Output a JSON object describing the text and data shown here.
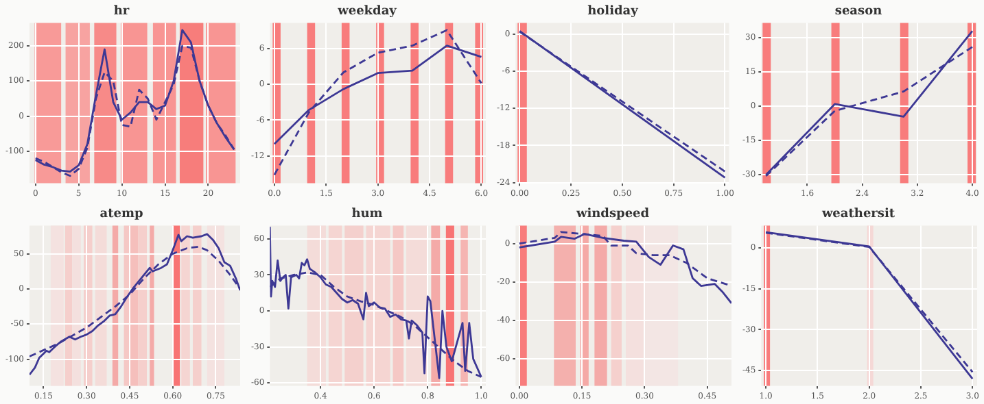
{
  "chart_data": [
    {
      "type": "line",
      "title": "hr",
      "xlim": [
        -0.7,
        23.7
      ],
      "xticks": [
        0,
        5,
        10,
        15,
        20
      ],
      "ylim": [
        -191,
        265
      ],
      "yticks": [
        -100,
        0,
        100,
        200
      ],
      "grid": true,
      "bands": [
        {
          "axis": "x",
          "from": -0.1,
          "to": 2.97,
          "color": "#f89a98"
        },
        {
          "axis": "x",
          "from": 3.48,
          "to": 6.29,
          "color": "#f7a3a1"
        },
        {
          "axis": "x",
          "from": 6.8,
          "to": 9.36,
          "color": "#f78a88"
        },
        {
          "axis": "x",
          "from": 9.87,
          "to": 12.94,
          "color": "#f89593"
        },
        {
          "axis": "x",
          "from": 13.6,
          "to": 16.27,
          "color": "#f89593"
        },
        {
          "axis": "x",
          "from": 16.7,
          "to": 19.44,
          "color": "#f77d7b"
        },
        {
          "axis": "x",
          "from": 19.74,
          "to": 23.17,
          "color": "#f89593"
        }
      ],
      "series": [
        {
          "color": "#3d3894",
          "line_style": "solid",
          "x": [
            0,
            1,
            2,
            3,
            4,
            5,
            6,
            7,
            8,
            9,
            10,
            11,
            12,
            13,
            14,
            15,
            16,
            17,
            18,
            19,
            20,
            21,
            22,
            23
          ],
          "values": [
            -125,
            -138,
            -145,
            -155,
            -158,
            -140,
            -80,
            60,
            190,
            40,
            -10,
            10,
            40,
            40,
            20,
            30,
            100,
            245,
            210,
            100,
            30,
            -20,
            -60,
            -95
          ]
        },
        {
          "color": "#3d3894",
          "line_style": "dashed",
          "x": [
            0,
            1,
            2,
            3,
            4,
            5,
            6,
            7,
            8,
            9,
            10,
            11,
            12,
            13,
            14,
            15,
            16,
            17,
            18,
            19,
            20,
            21,
            22,
            23
          ],
          "values": [
            -120,
            -130,
            -145,
            -160,
            -170,
            -150,
            -90,
            50,
            125,
            100,
            -25,
            -30,
            75,
            50,
            -10,
            40,
            90,
            200,
            195,
            100,
            30,
            -20,
            -55,
            -95
          ]
        }
      ]
    },
    {
      "type": "line",
      "title": "weekday",
      "xlim": [
        -0.13,
        6.13
      ],
      "xticks": [
        {
          "value": 0,
          "label": "0.0"
        },
        1.5,
        {
          "value": 3,
          "label": "3.0"
        },
        4.5,
        {
          "value": 6,
          "label": "6.0"
        }
      ],
      "ylim": [
        -16.6,
        10.3
      ],
      "yticks": [
        -12,
        -6,
        0,
        6
      ],
      "grid": true,
      "bands": [
        {
          "axis": "x",
          "from": -0.05,
          "to": 0.18,
          "color": "#f87c7c"
        },
        {
          "axis": "x",
          "from": 0.95,
          "to": 1.18,
          "color": "#f87c7c"
        },
        {
          "axis": "x",
          "from": 1.95,
          "to": 2.18,
          "color": "#f87c7c"
        },
        {
          "axis": "x",
          "from": 2.95,
          "to": 3.18,
          "color": "#f87c7c"
        },
        {
          "axis": "x",
          "from": 3.95,
          "to": 4.18,
          "color": "#f87c7c"
        },
        {
          "axis": "x",
          "from": 4.95,
          "to": 5.18,
          "color": "#f87c7c"
        },
        {
          "axis": "x",
          "from": 5.82,
          "to": 6.05,
          "color": "#f87c7c"
        }
      ],
      "series": [
        {
          "color": "#3d3894",
          "line_style": "solid",
          "x": [
            0,
            1,
            2,
            3,
            4,
            5,
            6
          ],
          "values": [
            -10,
            -4.3,
            -0.8,
            1.9,
            2.3,
            6.5,
            4.6
          ]
        },
        {
          "color": "#3d3894",
          "line_style": "dashed",
          "x": [
            0,
            1,
            2,
            3,
            4,
            5,
            6
          ],
          "values": [
            -15.2,
            -4.7,
            2,
            5.3,
            6.5,
            9.1,
            0.2
          ]
        }
      ]
    },
    {
      "type": "line",
      "title": "holiday",
      "xlim": [
        -0.02,
        1.02
      ],
      "xticks": [
        {
          "value": 0,
          "label": "0.00"
        },
        0.25,
        {
          "value": 0.5,
          "label": "0.50"
        },
        0.75,
        {
          "value": 1,
          "label": "1.00"
        }
      ],
      "ylim": [
        -24.1,
        1.8
      ],
      "yticks": [
        -24,
        -18,
        -12,
        -6,
        0
      ],
      "grid": true,
      "bands": [
        {
          "axis": "x",
          "from": -0.01,
          "to": 0.035,
          "color": "#f87c7c"
        }
      ],
      "series": [
        {
          "color": "#3d3894",
          "line_style": "solid",
          "x": [
            0,
            1
          ],
          "values": [
            0.5,
            -23.2
          ]
        },
        {
          "color": "#3d3894",
          "line_style": "dashed",
          "x": [
            0,
            1
          ],
          "values": [
            0.4,
            -22.2
          ]
        }
      ]
    },
    {
      "type": "line",
      "title": "season",
      "xlim": [
        0.93,
        4.07
      ],
      "xticks": [
        1.6,
        2.4,
        3.2,
        {
          "value": 4,
          "label": "4.0"
        }
      ],
      "ylim": [
        -33.7,
        36.5
      ],
      "yticks": [
        -30,
        -15,
        0,
        15,
        30
      ],
      "grid": true,
      "bands": [
        {
          "axis": "x",
          "from": 0.95,
          "to": 1.07,
          "color": "#f87c7c"
        },
        {
          "axis": "x",
          "from": 1.95,
          "to": 2.07,
          "color": "#f87c7c"
        },
        {
          "axis": "x",
          "from": 2.95,
          "to": 3.07,
          "color": "#f87c7c"
        },
        {
          "axis": "x",
          "from": 3.93,
          "to": 4.05,
          "color": "#f87c7c"
        }
      ],
      "series": [
        {
          "color": "#3d3894",
          "line_style": "solid",
          "x": [
            1,
            2,
            3,
            4
          ],
          "values": [
            -30,
            1,
            -4.5,
            33
          ]
        },
        {
          "color": "#3d3894",
          "line_style": "dashed",
          "x": [
            1,
            2,
            3,
            4
          ],
          "values": [
            -30.5,
            -2,
            6.5,
            26
          ]
        }
      ]
    },
    {
      "type": "line",
      "title": "atemp",
      "xlim": [
        0.101,
        0.835
      ],
      "xticks": [
        0.15,
        {
          "value": 0.3,
          "label": "0.30"
        },
        0.45,
        {
          "value": 0.6,
          "label": "0.60"
        },
        0.75
      ],
      "ylim": [
        -138,
        90
      ],
      "yticks": [
        -100,
        -50,
        0,
        50
      ],
      "grid": true,
      "bands": [
        {
          "axis": "x",
          "from": 0.175,
          "to": 0.22,
          "color": "#f4e2e0"
        },
        {
          "axis": "x",
          "from": 0.225,
          "to": 0.25,
          "color": "#f5cfcc"
        },
        {
          "axis": "x",
          "from": 0.25,
          "to": 0.28,
          "color": "#f4e0de"
        },
        {
          "axis": "x",
          "from": 0.29,
          "to": 0.32,
          "color": "#f5cfcc"
        },
        {
          "axis": "x",
          "from": 0.33,
          "to": 0.37,
          "color": "#f4dcd9"
        },
        {
          "axis": "x",
          "from": 0.39,
          "to": 0.41,
          "color": "#f4aaa8"
        },
        {
          "axis": "x",
          "from": 0.43,
          "to": 0.45,
          "color": "#f5c8c5"
        },
        {
          "axis": "x",
          "from": 0.45,
          "to": 0.48,
          "color": "#f5bfbc"
        },
        {
          "axis": "x",
          "from": 0.48,
          "to": 0.51,
          "color": "#f5cfcc"
        },
        {
          "axis": "x",
          "from": 0.52,
          "to": 0.535,
          "color": "#f4aaa8"
        },
        {
          "axis": "x",
          "from": 0.6,
          "to": 0.625,
          "color": "#f87474"
        },
        {
          "axis": "x",
          "from": 0.63,
          "to": 0.66,
          "color": "#f5d5d2"
        },
        {
          "axis": "x",
          "from": 0.67,
          "to": 0.7,
          "color": "#f5cfcc"
        },
        {
          "axis": "x",
          "from": 0.72,
          "to": 0.78,
          "color": "#f4e2e0"
        }
      ],
      "series": [
        {
          "color": "#3d3894",
          "line_style": "solid",
          "x": [
            0.101,
            0.12,
            0.135,
            0.15,
            0.16,
            0.17,
            0.19,
            0.21,
            0.24,
            0.26,
            0.28,
            0.3,
            0.32,
            0.34,
            0.36,
            0.38,
            0.4,
            0.42,
            0.44,
            0.46,
            0.48,
            0.5,
            0.52,
            0.53,
            0.56,
            0.58,
            0.6,
            0.62,
            0.63,
            0.65,
            0.67,
            0.7,
            0.72,
            0.74,
            0.76,
            0.78,
            0.8,
            0.82,
            0.835
          ],
          "values": [
            -122,
            -112,
            -98,
            -92,
            -88,
            -90,
            -82,
            -75,
            -68,
            -72,
            -68,
            -65,
            -60,
            -52,
            -46,
            -38,
            -36,
            -25,
            -12,
            0,
            10,
            20,
            30,
            25,
            30,
            35,
            55,
            77,
            68,
            75,
            73,
            75,
            78,
            70,
            58,
            38,
            33,
            15,
            -2
          ]
        },
        {
          "color": "#3d3894",
          "line_style": "dashed",
          "x": [
            0.101,
            0.2,
            0.3,
            0.4,
            0.45,
            0.5,
            0.55,
            0.6,
            0.65,
            0.69,
            0.72,
            0.76,
            0.8,
            0.835
          ],
          "values": [
            -96,
            -78,
            -55,
            -25,
            -8,
            15,
            35,
            50,
            58,
            60,
            55,
            40,
            20,
            0
          ]
        }
      ]
    },
    {
      "type": "line",
      "title": "hum",
      "xlim": [
        0.211,
        1.017
      ],
      "xticks": [
        0.4,
        0.6,
        0.8,
        {
          "value": 1,
          "label": "1.0"
        }
      ],
      "ylim": [
        -62.5,
        71
      ],
      "yticks": [
        -60,
        -30,
        0,
        30,
        60
      ],
      "grid": true,
      "bands": [
        {
          "axis": "x",
          "from": 0.35,
          "to": 0.42,
          "color": "#f4dcd9"
        },
        {
          "axis": "x",
          "from": 0.43,
          "to": 0.48,
          "color": "#f5d5d2"
        },
        {
          "axis": "x",
          "from": 0.49,
          "to": 0.56,
          "color": "#f4d0cd"
        },
        {
          "axis": "x",
          "from": 0.57,
          "to": 0.66,
          "color": "#f5d5d2"
        },
        {
          "axis": "x",
          "from": 0.67,
          "to": 0.71,
          "color": "#f5c8c5"
        },
        {
          "axis": "x",
          "from": 0.72,
          "to": 0.8,
          "color": "#f4dcd9"
        },
        {
          "axis": "x",
          "from": 0.813,
          "to": 0.846,
          "color": "#f4aaa8"
        },
        {
          "axis": "x",
          "from": 0.868,
          "to": 0.899,
          "color": "#f87474"
        },
        {
          "axis": "x",
          "from": 0.923,
          "to": 0.95,
          "color": "#f5b5b2"
        }
      ],
      "series": [
        {
          "color": "#3d3894",
          "line_style": "solid",
          "x": [
            0.211,
            0.215,
            0.22,
            0.23,
            0.24,
            0.25,
            0.26,
            0.27,
            0.28,
            0.29,
            0.31,
            0.32,
            0.33,
            0.34,
            0.35,
            0.36,
            0.38,
            0.4,
            0.42,
            0.44,
            0.46,
            0.48,
            0.5,
            0.52,
            0.54,
            0.56,
            0.57,
            0.58,
            0.6,
            0.62,
            0.64,
            0.66,
            0.68,
            0.7,
            0.72,
            0.73,
            0.74,
            0.76,
            0.78,
            0.788,
            0.8,
            0.81,
            0.843,
            0.855,
            0.87,
            0.89,
            0.93,
            0.94,
            0.955,
            0.97,
            1.0
          ],
          "values": [
            70,
            12,
            25,
            20,
            42,
            25,
            28,
            30,
            2,
            28,
            30,
            27,
            40,
            38,
            43,
            35,
            32,
            28,
            22,
            20,
            15,
            10,
            7,
            9,
            6,
            -7,
            15,
            4,
            7,
            3,
            2,
            -5,
            -3,
            -7,
            -8,
            -23,
            -8,
            -12,
            -18,
            -52,
            12,
            8,
            -56,
            0,
            -30,
            -42,
            -10,
            -50,
            -10,
            -40,
            -55
          ]
        },
        {
          "color": "#3d3894",
          "line_style": "dashed",
          "x": [
            0.211,
            0.25,
            0.3,
            0.35,
            0.4,
            0.45,
            0.5,
            0.55,
            0.6,
            0.65,
            0.7,
            0.75,
            0.8,
            0.85,
            0.9,
            0.95,
            1.0
          ],
          "values": [
            20,
            27,
            30,
            32,
            30,
            20,
            12,
            8,
            5,
            0,
            -5,
            -12,
            -22,
            -32,
            -42,
            -50,
            -55
          ]
        }
      ]
    },
    {
      "type": "line",
      "title": "windspeed",
      "xlim": [
        -0.009,
        0.508
      ],
      "xticks": [
        {
          "value": 0,
          "label": "0.00"
        },
        0.15,
        {
          "value": 0.3,
          "label": "0.30"
        },
        0.45
      ],
      "ylim": [
        -74,
        9.3
      ],
      "yticks": [
        -60,
        -40,
        -20,
        0
      ],
      "grid": true,
      "bands": [
        {
          "axis": "x",
          "from": 0,
          "to": 0.018,
          "color": "#f87c7c"
        },
        {
          "axis": "x",
          "from": 0.083,
          "to": 0.135,
          "color": "#f4b0ad"
        },
        {
          "axis": "x",
          "from": 0.146,
          "to": 0.166,
          "color": "#f5a9a6"
        },
        {
          "axis": "x",
          "from": 0.18,
          "to": 0.21,
          "color": "#f4aaa8"
        },
        {
          "axis": "x",
          "from": 0.22,
          "to": 0.245,
          "color": "#f5d0cd"
        },
        {
          "axis": "x",
          "from": 0.255,
          "to": 0.3,
          "color": "#f4e0de"
        },
        {
          "axis": "x",
          "from": 0.3,
          "to": 0.38,
          "color": "#f3e6e4"
        }
      ],
      "series": [
        {
          "color": "#3d3894",
          "line_style": "solid",
          "x": [
            0,
            0.085,
            0.1,
            0.132,
            0.156,
            0.2,
            0.25,
            0.28,
            0.31,
            0.338,
            0.368,
            0.393,
            0.415,
            0.435,
            0.468,
            0.486,
            0.508
          ],
          "values": [
            -2,
            1,
            3.5,
            2.5,
            5,
            3,
            1.5,
            1,
            -7,
            -11,
            -1,
            -3,
            -18,
            -22,
            -21,
            -25,
            -31
          ]
        },
        {
          "color": "#3d3894",
          "line_style": "dashed",
          "x": [
            0,
            0.085,
            0.1,
            0.15,
            0.2,
            0.22,
            0.26,
            0.28,
            0.32,
            0.36,
            0.4,
            0.45,
            0.508
          ],
          "values": [
            0,
            3,
            6,
            5,
            4,
            -1,
            -1,
            -5,
            -6,
            -6,
            -10,
            -18,
            -22
          ]
        }
      ]
    },
    {
      "type": "line",
      "title": "weathersit",
      "xlim": [
        0.955,
        3.045
      ],
      "xticks": [
        {
          "value": 1,
          "label": "1.0"
        },
        1.5,
        {
          "value": 2,
          "label": "2.0"
        },
        2.5,
        {
          "value": 3,
          "label": "3.0"
        }
      ],
      "ylim": [
        -50.6,
        8.1
      ],
      "yticks": [
        -45,
        -30,
        -15,
        0
      ],
      "grid": true,
      "bands": [
        {
          "axis": "x",
          "from": 0.98,
          "to": 1.04,
          "color": "#f87c7c"
        },
        {
          "axis": "x",
          "from": 1.98,
          "to": 2.04,
          "color": "#f5d8d6"
        }
      ],
      "series": [
        {
          "color": "#3d3894",
          "line_style": "solid",
          "x": [
            1,
            2,
            3
          ],
          "values": [
            5.7,
            0.5,
            -48
          ]
        },
        {
          "color": "#3d3894",
          "line_style": "dashed",
          "x": [
            1,
            2,
            3
          ],
          "values": [
            5.5,
            0.3,
            -45.5
          ]
        }
      ]
    }
  ]
}
